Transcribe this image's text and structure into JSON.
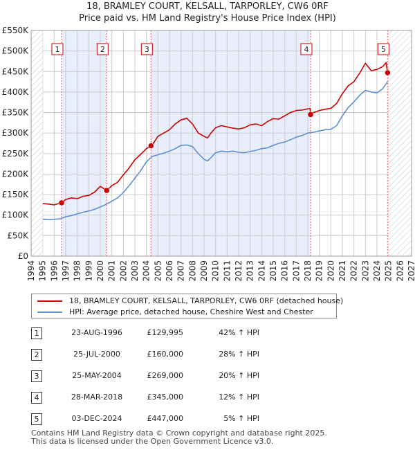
{
  "title_line1": "18, BRAMLEY COURT, KELSALL, TARPORLEY, CW6 0RF",
  "title_line2": "Price paid vs. HM Land Registry's House Price Index (HPI)",
  "colors": {
    "property": "#cc0000",
    "hpi": "#5b8fd0",
    "shade": "#e8eefb",
    "marker_line": "#e06666",
    "grid": "#cccccc"
  },
  "legend": {
    "property": "18, BRAMLEY COURT, KELSALL, TARPORLEY, CW6 0RF (detached house)",
    "hpi": "HPI: Average price, detached house, Cheshire West and Chester"
  },
  "sales": [
    {
      "num": "1",
      "date": "23-AUG-1996",
      "price": "£129,995",
      "hpi": "42% ↑ HPI"
    },
    {
      "num": "2",
      "date": "25-JUL-2000",
      "price": "£160,000",
      "hpi": "28% ↑ HPI"
    },
    {
      "num": "3",
      "date": "25-MAY-2004",
      "price": "£269,000",
      "hpi": "20% ↑ HPI"
    },
    {
      "num": "4",
      "date": "28-MAR-2018",
      "price": "£345,000",
      "hpi": "12% ↑ HPI"
    },
    {
      "num": "5",
      "date": "03-DEC-2024",
      "price": "£447,000",
      "hpi": "5% ↑ HPI"
    }
  ],
  "footer_line1": "Contains HM Land Registry data © Crown copyright and database right 2025.",
  "footer_line2": "This data is licensed under the Open Government Licence v3.0.",
  "chart_data": {
    "type": "line",
    "title": "18, BRAMLEY COURT, KELSALL, TARPORLEY, CW6 0RF",
    "subtitle": "Price paid vs. HM Land Registry's House Price Index (HPI)",
    "xlabel": "",
    "ylabel": "",
    "xlim": [
      1994,
      2027
    ],
    "ylim": [
      0,
      550000
    ],
    "x_ticks": [
      1994,
      1995,
      1996,
      1997,
      1998,
      1999,
      2000,
      2001,
      2002,
      2003,
      2004,
      2005,
      2006,
      2007,
      2008,
      2009,
      2010,
      2011,
      2012,
      2013,
      2014,
      2015,
      2016,
      2017,
      2018,
      2019,
      2020,
      2021,
      2022,
      2023,
      2024,
      2025,
      2026,
      2027
    ],
    "y_ticks": [
      0,
      50000,
      100000,
      150000,
      200000,
      250000,
      300000,
      350000,
      400000,
      450000,
      500000,
      550000
    ],
    "y_tick_labels": [
      "£0",
      "£50K",
      "£100K",
      "£150K",
      "£200K",
      "£250K",
      "£300K",
      "£350K",
      "£400K",
      "£450K",
      "£500K",
      "£550K"
    ],
    "grid": true,
    "hatched_regions": [
      [
        1994,
        1995
      ],
      [
        2025,
        2027
      ]
    ],
    "shaded_bands": [
      [
        1996.64,
        2000.56
      ],
      [
        2004.4,
        2018.24
      ]
    ],
    "series": [
      {
        "name": "18, BRAMLEY COURT, KELSALL, TARPORLEY, CW6 0RF (detached house)",
        "x": [
          1995,
          1995.5,
          1996,
          1996.64,
          1997,
          1997.5,
          1998,
          1998.5,
          1999,
          1999.5,
          2000,
          2000.56,
          2001,
          2001.5,
          2002,
          2002.5,
          2003,
          2003.5,
          2004,
          2004.4,
          2004.6,
          2005,
          2005.5,
          2006,
          2006.5,
          2007,
          2007.5,
          2008,
          2008.5,
          2009,
          2009.3,
          2009.6,
          2010,
          2010.5,
          2011,
          2011.5,
          2012,
          2012.5,
          2013,
          2013.5,
          2014,
          2014.5,
          2015,
          2015.5,
          2016,
          2016.5,
          2017,
          2017.5,
          2018.2,
          2018.24,
          2018.5,
          2019,
          2019.5,
          2020,
          2020.5,
          2021,
          2021.5,
          2022,
          2022.5,
          2023,
          2023.5,
          2024,
          2024.5,
          2024.8,
          2024.92
        ],
        "values": [
          128000,
          127000,
          125000,
          129995,
          138000,
          142000,
          140000,
          146000,
          148000,
          156000,
          170000,
          160000,
          172000,
          180000,
          198000,
          215000,
          235000,
          248000,
          262000,
          269000,
          275000,
          292000,
          300000,
          308000,
          322000,
          332000,
          336000,
          322000,
          300000,
          292000,
          288000,
          300000,
          313000,
          318000,
          315000,
          312000,
          310000,
          313000,
          320000,
          322000,
          318000,
          328000,
          335000,
          334000,
          342000,
          350000,
          355000,
          356000,
          360000,
          345000,
          350000,
          355000,
          358000,
          360000,
          372000,
          396000,
          415000,
          425000,
          446000,
          470000,
          452000,
          455000,
          462000,
          472000,
          447000
        ]
      },
      {
        "name": "HPI: Average price, detached house, Cheshire West and Chester",
        "x": [
          1995,
          1995.5,
          1996,
          1996.5,
          1997,
          1997.5,
          1998,
          1998.5,
          1999,
          1999.5,
          2000,
          2000.5,
          2001,
          2001.5,
          2002,
          2002.5,
          2003,
          2003.5,
          2004,
          2004.5,
          2005,
          2005.5,
          2006,
          2006.5,
          2007,
          2007.5,
          2008,
          2008.5,
          2009,
          2009.3,
          2009.6,
          2010,
          2010.5,
          2011,
          2011.5,
          2012,
          2012.5,
          2013,
          2013.5,
          2014,
          2014.5,
          2015,
          2015.5,
          2016,
          2016.5,
          2017,
          2017.5,
          2018,
          2018.5,
          2019,
          2019.5,
          2020,
          2020.5,
          2021,
          2021.5,
          2022,
          2022.5,
          2023,
          2023.5,
          2024,
          2024.5,
          2024.92
        ],
        "values": [
          90000,
          89000,
          90000,
          91000,
          96000,
          99000,
          103000,
          107000,
          110000,
          114000,
          120000,
          126000,
          134000,
          142000,
          155000,
          172000,
          190000,
          208000,
          230000,
          243000,
          247000,
          251000,
          256000,
          262000,
          270000,
          271000,
          267000,
          250000,
          236000,
          232000,
          240000,
          252000,
          256000,
          254000,
          256000,
          253000,
          252000,
          255000,
          258000,
          262000,
          264000,
          270000,
          275000,
          278000,
          284000,
          290000,
          294000,
          300000,
          302000,
          305000,
          308000,
          309000,
          318000,
          342000,
          362000,
          376000,
          392000,
          404000,
          400000,
          398000,
          408000,
          425000
        ]
      }
    ],
    "sales_markers": [
      {
        "label": "1",
        "x": 1996.64,
        "y": 129995
      },
      {
        "label": "2",
        "x": 2000.56,
        "y": 160000
      },
      {
        "label": "3",
        "x": 2004.4,
        "y": 269000
      },
      {
        "label": "4",
        "x": 2018.24,
        "y": 345000
      },
      {
        "label": "5",
        "x": 2024.92,
        "y": 447000
      }
    ]
  }
}
